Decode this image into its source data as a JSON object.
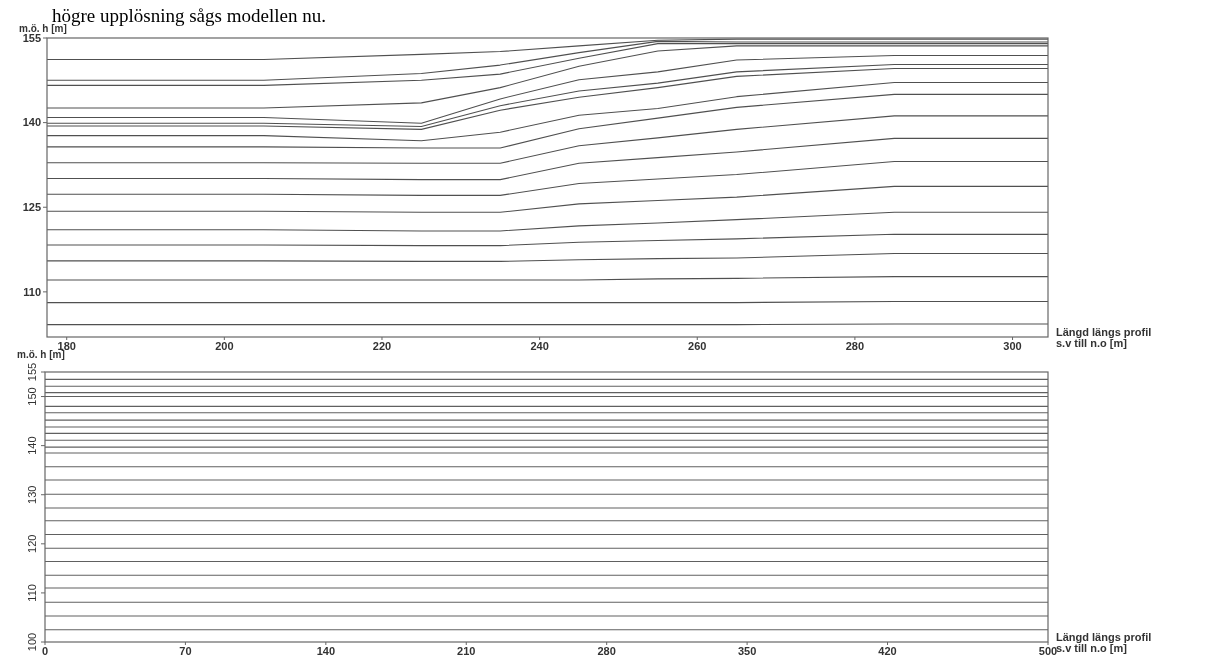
{
  "chart_data": [
    {
      "type": "line",
      "annotations": [
        "högre upplösning sågs modellen nu."
      ],
      "ylabel": "m.ö. h [m]",
      "xlabel": "Längd längs profil\ns.v till n.o [m]",
      "xlim": [
        177.5,
        304.5
      ],
      "ylim": [
        102,
        155
      ],
      "xticks": [
        180,
        200,
        220,
        240,
        260,
        280,
        300
      ],
      "yticks": [
        110,
        125,
        140,
        155
      ],
      "x": [
        177.5,
        205,
        225,
        235,
        245,
        255,
        265,
        285,
        304.5
      ],
      "series": [
        {
          "color": "#505050",
          "values": [
            151.2,
            151.2,
            152.1,
            152.6,
            153.6,
            154.6,
            154.8,
            154.8,
            154.8
          ]
        },
        {
          "color": "#505050",
          "values": [
            147.5,
            147.5,
            148.7,
            150.2,
            152.4,
            154.4,
            154.3,
            154.3,
            154.3
          ]
        },
        {
          "color": "#505050",
          "values": [
            146.6,
            146.6,
            147.5,
            148.6,
            151.4,
            154.0,
            154.0,
            154.0,
            154.0
          ]
        },
        {
          "color": "#505050",
          "values": [
            142.6,
            142.6,
            143.5,
            146.2,
            150.0,
            152.7,
            153.6,
            153.6,
            153.6
          ]
        },
        {
          "color": "#505050",
          "values": [
            140.9,
            140.9,
            139.9,
            144.2,
            147.6,
            149.0,
            151.1,
            151.9,
            151.9
          ]
        },
        {
          "color": "#505050",
          "values": [
            139.9,
            139.9,
            139.3,
            143.0,
            145.6,
            147.0,
            149.0,
            150.3,
            150.3
          ]
        },
        {
          "color": "#505050",
          "values": [
            139.4,
            139.4,
            138.8,
            142.2,
            144.5,
            146.2,
            148.2,
            149.6,
            149.6
          ]
        },
        {
          "color": "#505050",
          "values": [
            137.7,
            137.7,
            136.8,
            138.3,
            141.3,
            142.5,
            144.6,
            147.1,
            147.1
          ]
        },
        {
          "color": "#505050",
          "values": [
            135.7,
            135.7,
            135.5,
            135.5,
            138.9,
            140.8,
            142.7,
            145.0,
            145.0
          ]
        },
        {
          "color": "#505050",
          "values": [
            132.9,
            132.9,
            132.8,
            132.8,
            135.9,
            137.3,
            138.8,
            141.2,
            141.2
          ]
        },
        {
          "color": "#505050",
          "values": [
            130.1,
            130.1,
            129.9,
            129.9,
            132.8,
            133.8,
            134.8,
            137.2,
            137.2
          ]
        },
        {
          "color": "#505050",
          "values": [
            127.3,
            127.3,
            127.1,
            127.1,
            129.2,
            130.0,
            130.8,
            133.1,
            133.1
          ]
        },
        {
          "color": "#505050",
          "values": [
            124.3,
            124.3,
            124.1,
            124.1,
            125.6,
            126.2,
            126.8,
            128.7,
            128.7
          ]
        },
        {
          "color": "#505050",
          "values": [
            121.0,
            121.0,
            120.8,
            120.8,
            121.7,
            122.2,
            122.8,
            124.1,
            124.1
          ]
        },
        {
          "color": "#505050",
          "values": [
            118.3,
            118.3,
            118.2,
            118.2,
            118.8,
            119.1,
            119.4,
            120.2,
            120.2
          ]
        },
        {
          "color": "#505050",
          "values": [
            115.5,
            115.5,
            115.4,
            115.4,
            115.7,
            115.9,
            116.0,
            116.8,
            116.8
          ]
        },
        {
          "color": "#505050",
          "values": [
            112.1,
            112.1,
            112.1,
            112.1,
            112.1,
            112.3,
            112.4,
            112.7,
            112.7
          ]
        },
        {
          "color": "#505050",
          "values": [
            108.1,
            108.1,
            108.1,
            108.1,
            108.1,
            108.1,
            108.1,
            108.3,
            108.3
          ]
        },
        {
          "color": "#505050",
          "values": [
            104.2,
            104.2,
            104.2,
            104.2,
            104.2,
            104.2,
            104.2,
            104.3,
            104.3
          ]
        }
      ]
    },
    {
      "type": "line",
      "ylabel": "m.ö. h [m]",
      "xlabel": "Längd längs profil\ns.v till n.o [m]",
      "xlim": [
        0,
        500
      ],
      "ylim": [
        100,
        155
      ],
      "xticks": [
        0,
        70,
        140,
        210,
        280,
        350,
        420,
        500
      ],
      "yticks": [
        100,
        110,
        120,
        130,
        140,
        150,
        155
      ],
      "x": [
        0,
        500
      ],
      "series": [
        {
          "color": "#606060",
          "values": [
            153.5,
            153.5
          ]
        },
        {
          "color": "#606060",
          "values": [
            152.1,
            152.1
          ]
        },
        {
          "color": "#606060",
          "values": [
            150.8,
            150.8
          ]
        },
        {
          "color": "#606060",
          "values": [
            150.0,
            150.0
          ]
        },
        {
          "color": "#606060",
          "values": [
            148.0,
            148.0
          ]
        },
        {
          "color": "#606060",
          "values": [
            146.7,
            146.7
          ]
        },
        {
          "color": "#606060",
          "values": [
            145.2,
            145.2
          ]
        },
        {
          "color": "#606060",
          "values": [
            143.8,
            143.8
          ]
        },
        {
          "color": "#606060",
          "values": [
            142.5,
            142.5
          ]
        },
        {
          "color": "#606060",
          "values": [
            141.1,
            141.1
          ]
        },
        {
          "color": "#606060",
          "values": [
            139.7,
            139.7
          ]
        },
        {
          "color": "#606060",
          "values": [
            138.5,
            138.5
          ]
        },
        {
          "color": "#606060",
          "values": [
            135.7,
            135.7
          ]
        },
        {
          "color": "#606060",
          "values": [
            133.0,
            133.0
          ]
        },
        {
          "color": "#606060",
          "values": [
            130.1,
            130.1
          ]
        },
        {
          "color": "#606060",
          "values": [
            127.3,
            127.3
          ]
        },
        {
          "color": "#606060",
          "values": [
            124.7,
            124.7
          ]
        },
        {
          "color": "#606060",
          "values": [
            121.9,
            121.9
          ]
        },
        {
          "color": "#606060",
          "values": [
            119.1,
            119.1
          ]
        },
        {
          "color": "#606060",
          "values": [
            116.4,
            116.4
          ]
        },
        {
          "color": "#606060",
          "values": [
            113.6,
            113.6
          ]
        },
        {
          "color": "#606060",
          "values": [
            111.0,
            111.0
          ]
        },
        {
          "color": "#606060",
          "values": [
            108.1,
            108.1
          ]
        },
        {
          "color": "#606060",
          "values": [
            105.3,
            105.3
          ]
        },
        {
          "color": "#606060",
          "values": [
            102.5,
            102.5
          ]
        }
      ]
    }
  ]
}
